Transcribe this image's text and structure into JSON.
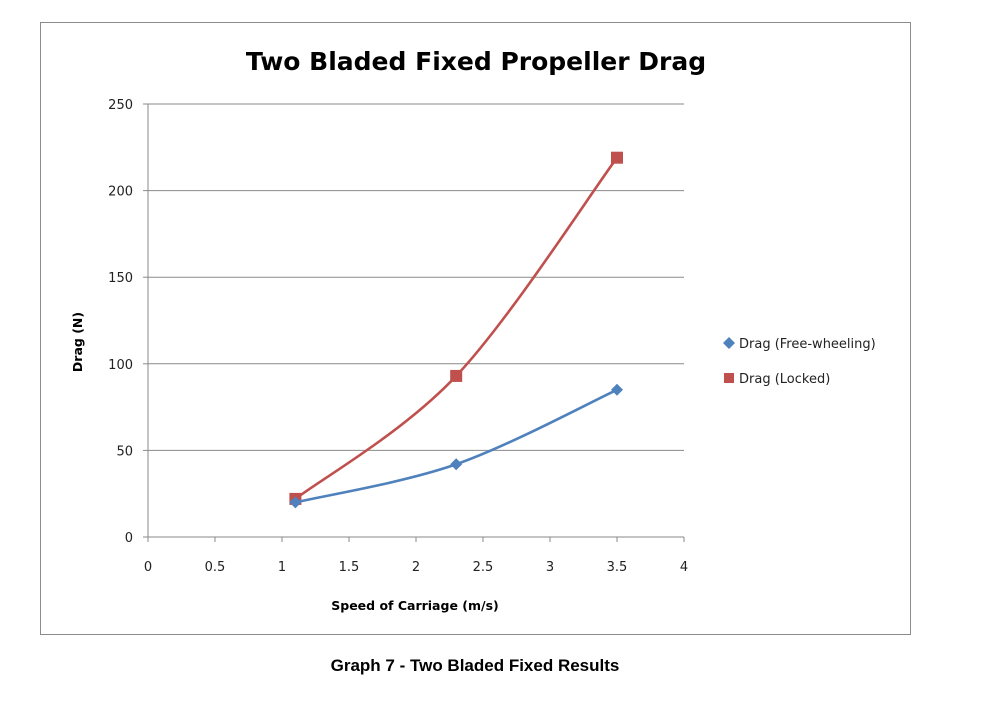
{
  "caption": "Graph 7 - Two Bladed Fixed Results",
  "colors": {
    "free_wheeling": "#4f81bd",
    "locked": "#c0504d",
    "gridline": "#8a8a8a",
    "axis": "#8a8a8a",
    "frame_border": "#8c8c8c"
  },
  "chart_data": {
    "type": "scatter",
    "title": "Two Bladed Fixed Propeller Drag",
    "xlabel": "Speed of Carriage (m/s)",
    "ylabel": "Drag (N)",
    "xlim": [
      0,
      4
    ],
    "ylim": [
      0,
      250
    ],
    "x_ticks": [
      "0",
      "0.5",
      "1",
      "1.5",
      "2",
      "2.5",
      "3",
      "3.5",
      "4"
    ],
    "y_ticks": [
      "0",
      "50",
      "100",
      "150",
      "200",
      "250"
    ],
    "grid": "horizontal major gridlines",
    "legend_position": "right",
    "lines": "smoothed",
    "series": [
      {
        "name": "Drag (Free-wheeling)",
        "marker": "diamond",
        "color": "#4f81bd",
        "points": [
          {
            "x": 1.1,
            "y": 20
          },
          {
            "x": 2.3,
            "y": 42
          },
          {
            "x": 3.5,
            "y": 85
          }
        ]
      },
      {
        "name": "Drag (Locked)",
        "marker": "square",
        "color": "#c0504d",
        "points": [
          {
            "x": 1.1,
            "y": 22
          },
          {
            "x": 2.3,
            "y": 93
          },
          {
            "x": 3.5,
            "y": 219
          }
        ]
      }
    ]
  }
}
